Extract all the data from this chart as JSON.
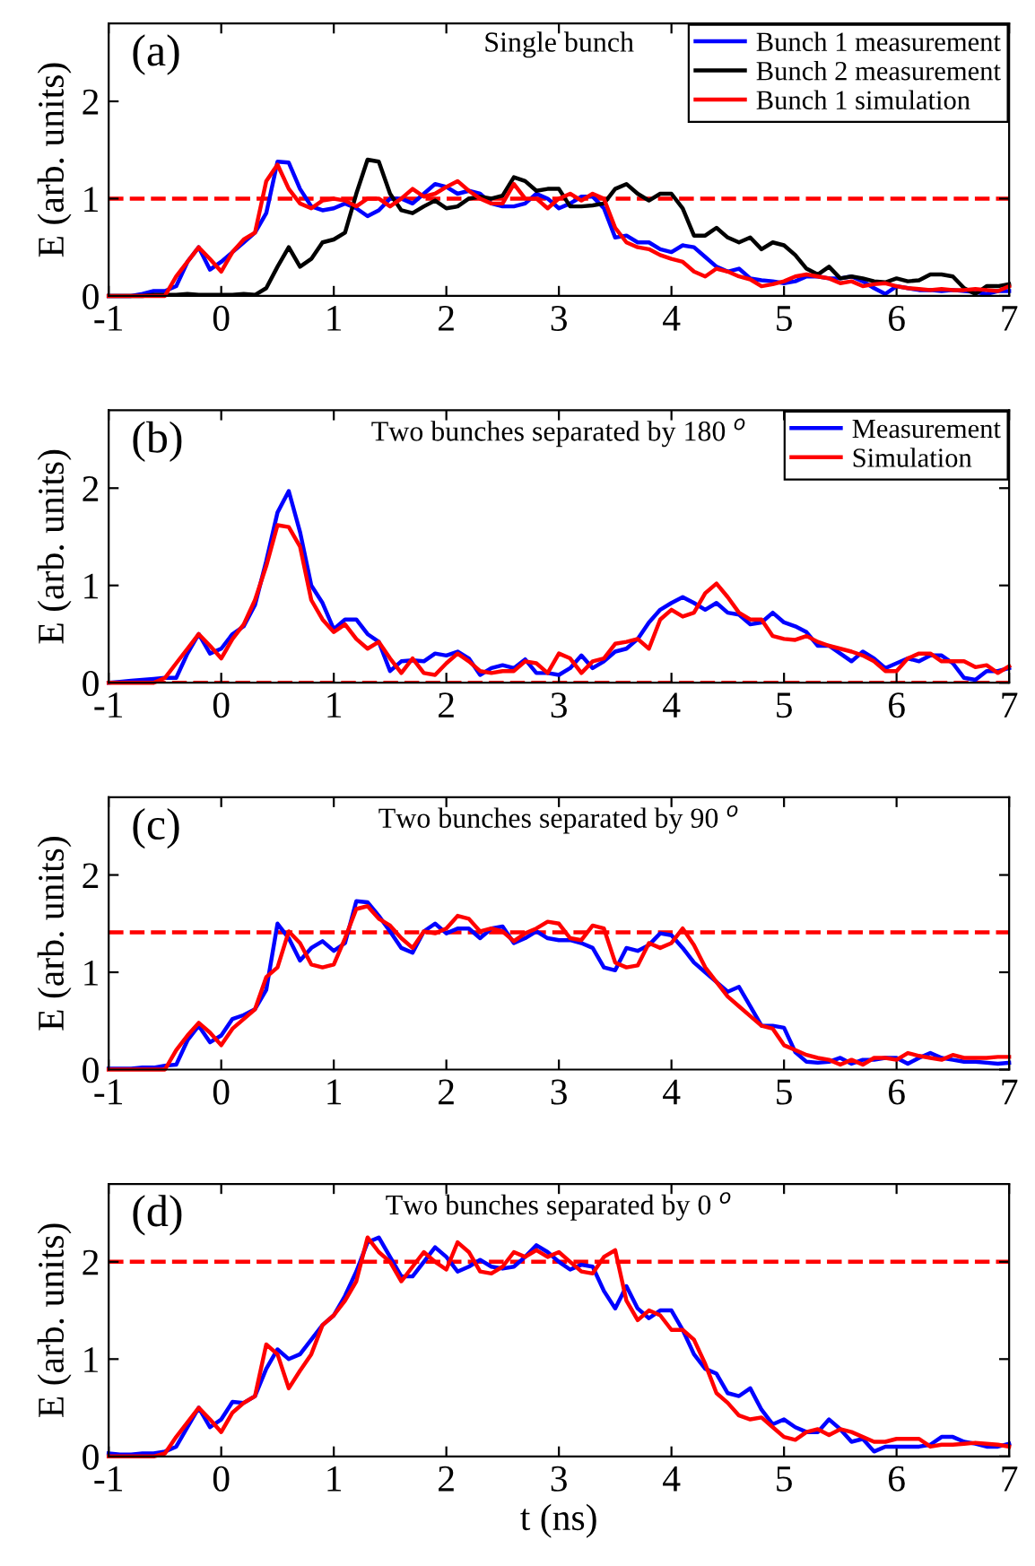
{
  "chart_data": [
    {
      "type": "line",
      "title": "Single bunch",
      "ylabel": "E (arb. units)",
      "annotations": [
        "(a)"
      ],
      "x": [
        -1,
        -0.9,
        -0.8,
        -0.7,
        -0.6,
        -0.5,
        -0.4,
        -0.3,
        -0.2,
        -0.1,
        0,
        0.1,
        0.2,
        0.3,
        0.4,
        0.5,
        0.6,
        0.7,
        0.8,
        0.9,
        1,
        1.1,
        1.2,
        1.3,
        1.4,
        1.5,
        1.6,
        1.7,
        1.8,
        1.9,
        2,
        2.1,
        2.2,
        2.3,
        2.4,
        2.5,
        2.6,
        2.7,
        2.8,
        2.9,
        3,
        3.1,
        3.2,
        3.3,
        3.4,
        3.5,
        3.6,
        3.7,
        3.8,
        3.9,
        4,
        4.1,
        4.2,
        4.3,
        4.4,
        4.5,
        4.6,
        4.7,
        4.8,
        4.9,
        5,
        5.1,
        5.2,
        5.3,
        5.4,
        5.5,
        5.6,
        5.7,
        5.8,
        5.9,
        6,
        6.1,
        6.2,
        6.3,
        6.4,
        6.5,
        6.6,
        6.7,
        6.8,
        6.9,
        7
      ],
      "series": [
        {
          "name": "Bunch 1 measurement",
          "color": "#0000ff",
          "values": [
            0,
            0,
            0,
            0.02,
            0.05,
            0.05,
            0.1,
            0.35,
            0.5,
            0.27,
            0.35,
            0.45,
            0.55,
            0.65,
            0.85,
            1.38,
            1.37,
            1.1,
            0.92,
            0.88,
            0.9,
            0.95,
            0.9,
            0.82,
            0.88,
            1.0,
            1.0,
            0.95,
            1.05,
            1.15,
            1.12,
            1.05,
            1.08,
            1.05,
            0.95,
            0.92,
            0.92,
            0.95,
            1.05,
            1.0,
            0.9,
            0.95,
            1.02,
            1.02,
            0.9,
            0.6,
            0.62,
            0.55,
            0.55,
            0.48,
            0.45,
            0.52,
            0.5,
            0.4,
            0.3,
            0.25,
            0.28,
            0.18,
            0.16,
            0.15,
            0.13,
            0.15,
            0.2,
            0.2,
            0.18,
            0.18,
            0.2,
            0.15,
            0.08,
            0.02,
            0.1,
            0.08,
            0.06,
            0.06,
            0.05,
            0.06,
            0.05,
            0.04,
            0.02,
            0.05,
            0.05
          ]
        },
        {
          "name": "Bunch 2 measurement",
          "color": "#000000",
          "values": [
            0,
            0,
            0,
            0,
            0.01,
            0.01,
            0.01,
            0.02,
            0.01,
            0.01,
            0.01,
            0.01,
            0.02,
            0.01,
            0.08,
            0.3,
            0.5,
            0.3,
            0.38,
            0.55,
            0.58,
            0.65,
            1.05,
            1.4,
            1.38,
            1.05,
            0.88,
            0.85,
            0.92,
            0.98,
            0.9,
            0.92,
            1.0,
            1.02,
            1.0,
            1.03,
            1.22,
            1.18,
            1.08,
            1.1,
            1.1,
            0.92,
            0.92,
            0.93,
            0.95,
            1.1,
            1.15,
            1.05,
            0.98,
            1.05,
            1.05,
            0.9,
            0.62,
            0.62,
            0.7,
            0.6,
            0.55,
            0.6,
            0.48,
            0.55,
            0.52,
            0.42,
            0.28,
            0.22,
            0.3,
            0.18,
            0.2,
            0.18,
            0.15,
            0.14,
            0.18,
            0.15,
            0.16,
            0.22,
            0.22,
            0.2,
            0.08,
            0.02,
            0.1,
            0.1,
            0.12
          ]
        },
        {
          "name": "Bunch 1 simulation",
          "color": "#ff0000",
          "values": [
            0,
            0,
            0,
            0,
            0,
            0,
            0.2,
            0.35,
            0.5,
            0.38,
            0.25,
            0.45,
            0.58,
            0.65,
            1.18,
            1.35,
            1.1,
            0.95,
            0.9,
            0.98,
            1.0,
            0.98,
            0.92,
            1.0,
            1.0,
            0.92,
            1.0,
            1.1,
            1.02,
            1.05,
            1.12,
            1.18,
            1.08,
            1.0,
            0.95,
            0.95,
            1.15,
            1.0,
            1.0,
            0.9,
            1.0,
            1.05,
            0.98,
            1.05,
            1.0,
            0.7,
            0.55,
            0.5,
            0.48,
            0.42,
            0.38,
            0.35,
            0.25,
            0.2,
            0.28,
            0.25,
            0.2,
            0.17,
            0.1,
            0.12,
            0.15,
            0.2,
            0.22,
            0.2,
            0.18,
            0.13,
            0.15,
            0.1,
            0.12,
            0.13,
            0.1,
            0.08,
            0.07,
            0.06,
            0.07,
            0.06,
            0.06,
            0.07,
            0.06,
            0.05,
            0.1
          ]
        }
      ],
      "ref_lines": [
        {
          "axis": "y",
          "value": 1,
          "color": "#ff0000",
          "line_style": "dashed"
        }
      ],
      "xlim": [
        -1,
        7
      ],
      "xticks": [
        -1,
        0,
        1,
        2,
        3,
        4,
        5,
        6,
        7
      ],
      "ylim": [
        0,
        2.8
      ],
      "yticks": [
        0,
        1,
        2
      ],
      "grid": false,
      "legend": "top right",
      "marker": "none",
      "line_style": "solid"
    },
    {
      "type": "line",
      "title": "Two bunches separated by 180 $^{o}$",
      "ylabel": "E (arb. units)",
      "annotations": [
        "(b)"
      ],
      "x": [
        -1,
        -0.9,
        -0.8,
        -0.7,
        -0.6,
        -0.5,
        -0.4,
        -0.3,
        -0.2,
        -0.1,
        0,
        0.1,
        0.2,
        0.3,
        0.4,
        0.5,
        0.6,
        0.7,
        0.8,
        0.9,
        1,
        1.1,
        1.2,
        1.3,
        1.4,
        1.5,
        1.6,
        1.7,
        1.8,
        1.9,
        2,
        2.1,
        2.2,
        2.3,
        2.4,
        2.5,
        2.6,
        2.7,
        2.8,
        2.9,
        3,
        3.1,
        3.2,
        3.3,
        3.4,
        3.5,
        3.6,
        3.7,
        3.8,
        3.9,
        4,
        4.1,
        4.2,
        4.3,
        4.4,
        4.5,
        4.6,
        4.7,
        4.8,
        4.9,
        5,
        5.1,
        5.2,
        5.3,
        5.4,
        5.5,
        5.6,
        5.7,
        5.8,
        5.9,
        6,
        6.1,
        6.2,
        6.3,
        6.4,
        6.5,
        6.6,
        6.7,
        6.8,
        6.9,
        7
      ],
      "series": [
        {
          "name": "Measurement",
          "color": "#0000ff",
          "values": [
            0,
            0.01,
            0.02,
            0.03,
            0.04,
            0.05,
            0.05,
            0.3,
            0.5,
            0.3,
            0.35,
            0.5,
            0.58,
            0.8,
            1.25,
            1.75,
            1.97,
            1.55,
            1.0,
            0.82,
            0.55,
            0.65,
            0.65,
            0.5,
            0.42,
            0.12,
            0.22,
            0.23,
            0.22,
            0.3,
            0.28,
            0.32,
            0.25,
            0.08,
            0.15,
            0.18,
            0.15,
            0.24,
            0.1,
            0.1,
            0.08,
            0.15,
            0.28,
            0.15,
            0.22,
            0.32,
            0.35,
            0.45,
            0.62,
            0.75,
            0.82,
            0.88,
            0.82,
            0.75,
            0.82,
            0.72,
            0.7,
            0.6,
            0.62,
            0.72,
            0.62,
            0.58,
            0.52,
            0.38,
            0.38,
            0.3,
            0.22,
            0.32,
            0.25,
            0.15,
            0.2,
            0.25,
            0.22,
            0.28,
            0.28,
            0.2,
            0.05,
            0.03,
            0.12,
            0.12,
            0.15
          ]
        },
        {
          "name": "Simulation",
          "color": "#ff0000",
          "values": [
            0,
            0,
            0,
            0,
            0,
            0.05,
            0.2,
            0.35,
            0.5,
            0.38,
            0.25,
            0.45,
            0.6,
            0.85,
            1.2,
            1.62,
            1.6,
            1.4,
            0.85,
            0.65,
            0.52,
            0.6,
            0.45,
            0.35,
            0.42,
            0.25,
            0.1,
            0.25,
            0.1,
            0.08,
            0.2,
            0.3,
            0.22,
            0.12,
            0.1,
            0.12,
            0.12,
            0.22,
            0.2,
            0.1,
            0.3,
            0.25,
            0.1,
            0.22,
            0.25,
            0.4,
            0.42,
            0.45,
            0.35,
            0.65,
            0.75,
            0.68,
            0.72,
            0.92,
            1.02,
            0.88,
            0.72,
            0.65,
            0.65,
            0.48,
            0.45,
            0.44,
            0.48,
            0.42,
            0.38,
            0.35,
            0.32,
            0.28,
            0.22,
            0.12,
            0.12,
            0.25,
            0.3,
            0.3,
            0.22,
            0.22,
            0.22,
            0.16,
            0.18,
            0.1,
            0.17
          ]
        }
      ],
      "ref_lines": [
        {
          "axis": "y",
          "value": 0,
          "color": "#ff0000",
          "line_style": "dashed"
        }
      ],
      "xlim": [
        -1,
        7
      ],
      "xticks": [
        -1,
        0,
        1,
        2,
        3,
        4,
        5,
        6,
        7
      ],
      "ylim": [
        0,
        2.8
      ],
      "yticks": [
        0,
        1,
        2
      ],
      "grid": false,
      "legend": "top right",
      "marker": "none",
      "line_style": "solid"
    },
    {
      "type": "line",
      "title": "Two bunches separated by 90 $^{o}$",
      "ylabel": "E (arb. units)",
      "annotations": [
        "(c)"
      ],
      "x": [
        -1,
        -0.9,
        -0.8,
        -0.7,
        -0.6,
        -0.5,
        -0.4,
        -0.3,
        -0.2,
        -0.1,
        0,
        0.1,
        0.2,
        0.3,
        0.4,
        0.5,
        0.6,
        0.7,
        0.8,
        0.9,
        1,
        1.1,
        1.2,
        1.3,
        1.4,
        1.5,
        1.6,
        1.7,
        1.8,
        1.9,
        2,
        2.1,
        2.2,
        2.3,
        2.4,
        2.5,
        2.6,
        2.7,
        2.8,
        2.9,
        3,
        3.1,
        3.2,
        3.3,
        3.4,
        3.5,
        3.6,
        3.7,
        3.8,
        3.9,
        4,
        4.1,
        4.2,
        4.3,
        4.4,
        4.5,
        4.6,
        4.7,
        4.8,
        4.9,
        5,
        5.1,
        5.2,
        5.3,
        5.4,
        5.5,
        5.6,
        5.7,
        5.8,
        5.9,
        6,
        6.1,
        6.2,
        6.3,
        6.4,
        6.5,
        6.6,
        6.7,
        6.8,
        6.9,
        7
      ],
      "series": [
        {
          "color": "#0000ff",
          "values": [
            0.01,
            0.01,
            0.01,
            0.02,
            0.02,
            0.04,
            0.05,
            0.3,
            0.45,
            0.28,
            0.35,
            0.52,
            0.56,
            0.62,
            0.82,
            1.5,
            1.35,
            1.12,
            1.25,
            1.32,
            1.22,
            1.3,
            1.73,
            1.72,
            1.58,
            1.42,
            1.25,
            1.2,
            1.42,
            1.5,
            1.4,
            1.45,
            1.45,
            1.35,
            1.45,
            1.47,
            1.3,
            1.35,
            1.42,
            1.35,
            1.33,
            1.33,
            1.3,
            1.25,
            1.05,
            1.02,
            1.25,
            1.22,
            1.28,
            1.4,
            1.38,
            1.25,
            1.1,
            1.0,
            0.9,
            0.8,
            0.85,
            0.65,
            0.45,
            0.45,
            0.43,
            0.18,
            0.08,
            0.07,
            0.08,
            0.12,
            0.06,
            0.1,
            0.1,
            0.12,
            0.12,
            0.06,
            0.12,
            0.17,
            0.12,
            0.1,
            0.08,
            0.08,
            0.07,
            0.06,
            0.07
          ]
        },
        {
          "color": "#ff0000",
          "values": [
            0,
            0,
            0,
            0,
            0,
            0,
            0.2,
            0.35,
            0.48,
            0.38,
            0.25,
            0.42,
            0.52,
            0.62,
            0.95,
            1.05,
            1.42,
            1.3,
            1.08,
            1.05,
            1.08,
            1.35,
            1.65,
            1.68,
            1.55,
            1.48,
            1.35,
            1.25,
            1.42,
            1.4,
            1.45,
            1.58,
            1.55,
            1.42,
            1.45,
            1.42,
            1.32,
            1.4,
            1.45,
            1.52,
            1.5,
            1.35,
            1.33,
            1.48,
            1.45,
            1.1,
            1.05,
            1.07,
            1.3,
            1.25,
            1.3,
            1.45,
            1.28,
            1.05,
            0.9,
            0.75,
            0.65,
            0.55,
            0.45,
            0.42,
            0.25,
            0.2,
            0.15,
            0.12,
            0.1,
            0.05,
            0.1,
            0.05,
            0.12,
            0.12,
            0.1,
            0.17,
            0.14,
            0.12,
            0.1,
            0.15,
            0.12,
            0.12,
            0.12,
            0.13,
            0.13
          ]
        }
      ],
      "ref_lines": [
        {
          "axis": "y",
          "value": 1.41,
          "color": "#ff0000",
          "line_style": "dashed"
        }
      ],
      "xlim": [
        -1,
        7
      ],
      "xticks": [
        -1,
        0,
        1,
        2,
        3,
        4,
        5,
        6,
        7
      ],
      "ylim": [
        0,
        2.8
      ],
      "yticks": [
        0,
        1,
        2
      ],
      "grid": false,
      "marker": "none",
      "line_style": "solid"
    },
    {
      "type": "line",
      "title": "Two bunches separated by 0 $^{o}$",
      "ylabel": "E (arb. units)",
      "xlabel": "t (ns)",
      "annotations": [
        "(d)"
      ],
      "x": [
        -1,
        -0.9,
        -0.8,
        -0.7,
        -0.6,
        -0.5,
        -0.4,
        -0.3,
        -0.2,
        -0.1,
        0,
        0.1,
        0.2,
        0.3,
        0.4,
        0.5,
        0.6,
        0.7,
        0.8,
        0.9,
        1,
        1.1,
        1.2,
        1.3,
        1.4,
        1.5,
        1.6,
        1.7,
        1.8,
        1.9,
        2,
        2.1,
        2.2,
        2.3,
        2.4,
        2.5,
        2.6,
        2.7,
        2.8,
        2.9,
        3,
        3.1,
        3.2,
        3.3,
        3.4,
        3.5,
        3.6,
        3.7,
        3.8,
        3.9,
        4,
        4.1,
        4.2,
        4.3,
        4.4,
        4.5,
        4.6,
        4.7,
        4.8,
        4.9,
        5,
        5.1,
        5.2,
        5.3,
        5.4,
        5.5,
        5.6,
        5.7,
        5.8,
        5.9,
        6,
        6.1,
        6.2,
        6.3,
        6.4,
        6.5,
        6.6,
        6.7,
        6.8,
        6.9,
        7
      ],
      "series": [
        {
          "color": "#0000ff",
          "values": [
            0.03,
            0.02,
            0.02,
            0.03,
            0.03,
            0.05,
            0.1,
            0.3,
            0.5,
            0.3,
            0.38,
            0.56,
            0.55,
            0.62,
            0.9,
            1.1,
            1.0,
            1.05,
            1.2,
            1.35,
            1.45,
            1.65,
            1.9,
            2.2,
            2.25,
            2.05,
            1.85,
            1.85,
            2.0,
            2.15,
            2.05,
            1.9,
            1.95,
            2.02,
            1.95,
            1.93,
            1.95,
            2.05,
            2.17,
            2.1,
            2.0,
            1.92,
            1.97,
            1.95,
            1.7,
            1.52,
            1.75,
            1.52,
            1.42,
            1.5,
            1.5,
            1.3,
            1.05,
            0.9,
            0.85,
            0.65,
            0.62,
            0.7,
            0.48,
            0.33,
            0.38,
            0.3,
            0.25,
            0.25,
            0.38,
            0.28,
            0.15,
            0.18,
            0.05,
            0.1,
            0.1,
            0.1,
            0.1,
            0.12,
            0.2,
            0.2,
            0.15,
            0.13,
            0.1,
            0.1,
            0.13
          ]
        },
        {
          "color": "#ff0000",
          "values": [
            0,
            0,
            0,
            0,
            0,
            0.03,
            0.2,
            0.35,
            0.5,
            0.38,
            0.25,
            0.45,
            0.55,
            0.62,
            1.15,
            1.05,
            0.7,
            0.88,
            1.05,
            1.35,
            1.45,
            1.6,
            1.8,
            2.25,
            2.1,
            2.0,
            1.8,
            1.95,
            2.1,
            2.0,
            1.92,
            2.2,
            2.1,
            1.9,
            1.88,
            1.95,
            2.1,
            2.05,
            2.12,
            2.05,
            2.1,
            2.0,
            1.9,
            1.88,
            2.05,
            2.12,
            1.6,
            1.4,
            1.5,
            1.45,
            1.3,
            1.3,
            1.2,
            0.95,
            0.65,
            0.55,
            0.42,
            0.38,
            0.4,
            0.3,
            0.2,
            0.17,
            0.25,
            0.28,
            0.22,
            0.28,
            0.25,
            0.2,
            0.15,
            0.15,
            0.18,
            0.18,
            0.18,
            0.1,
            0.12,
            0.12,
            0.13,
            0.14,
            0.13,
            0.12,
            0.1
          ]
        }
      ],
      "ref_lines": [
        {
          "axis": "y",
          "value": 2,
          "color": "#ff0000",
          "line_style": "dashed"
        }
      ],
      "xlim": [
        -1,
        7
      ],
      "xticks": [
        -1,
        0,
        1,
        2,
        3,
        4,
        5,
        6,
        7
      ],
      "ylim": [
        0,
        2.8
      ],
      "yticks": [
        0,
        1,
        2
      ],
      "grid": false,
      "marker": "none",
      "line_style": "solid"
    }
  ]
}
